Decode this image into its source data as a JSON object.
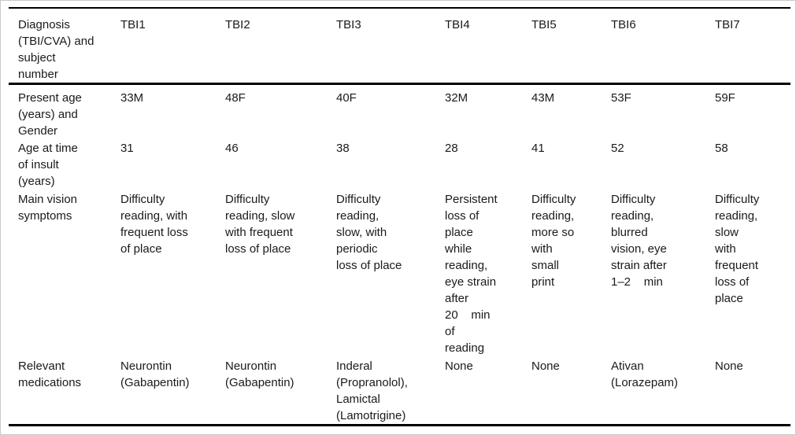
{
  "table": {
    "header": {
      "diagnosis_label": "Diagnosis\n(TBI/CVA) and\nsubject\nnumber",
      "subjects": [
        "TBI1",
        "TBI2",
        "TBI3",
        "TBI4",
        "TBI5",
        "TBI6",
        "TBI7"
      ]
    },
    "rows": [
      {
        "label": "Present age\n(years) and\nGender",
        "values": [
          "33M",
          "48F",
          "40F",
          "32M",
          "43M",
          "53F",
          "59F"
        ]
      },
      {
        "label": "Age at time\nof insult\n(years)",
        "values": [
          "31",
          "46",
          "38",
          "28",
          "41",
          "52",
          "58"
        ]
      },
      {
        "label": "Main vision\nsymptoms",
        "values": [
          "Difficulty\nreading, with\nfrequent loss\nof place",
          "Difficulty\nreading, slow\nwith frequent\nloss of place",
          "Difficulty\nreading,\nslow, with\nperiodic\nloss of place",
          "Persistent\nloss of\nplace\nwhile\nreading,\neye strain\nafter\n20    min\nof\nreading",
          "Difficulty\nreading,\nmore so\nwith\nsmall\nprint",
          "Difficulty\nreading,\nblurred\nvision, eye\nstrain after\n1–2    min",
          "Difficulty\nreading,\nslow\nwith\nfrequent\nloss of\nplace"
        ]
      },
      {
        "label": "Relevant\nmedications",
        "values": [
          "Neurontin\n(Gabapentin)",
          "Neurontin\n(Gabapentin)",
          "Inderal\n(Propranolol),\nLamictal\n(Lamotrigine)",
          "None",
          "None",
          "Ativan\n(Lorazepam)",
          "None"
        ]
      }
    ]
  }
}
